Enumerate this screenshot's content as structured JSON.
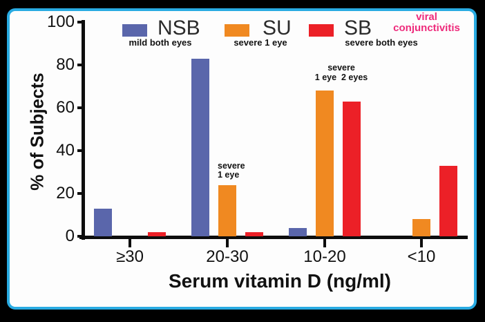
{
  "frame": {
    "outer_background": "#000000",
    "border_color": "#29ABE2",
    "panel_background": "#FDFDFD"
  },
  "chart_data": {
    "type": "bar",
    "title": "",
    "xlabel": "Serum vitamin D (ng/ml)",
    "ylabel": "% of Subjects",
    "categories": [
      "≥30",
      "20-30",
      "10-20",
      "<10"
    ],
    "ylim": [
      0,
      100
    ],
    "yticks": [
      0,
      20,
      40,
      60,
      80,
      100
    ],
    "grid": false,
    "legend_position": "top",
    "series": [
      {
        "name": "NSB",
        "sublabel": "mild both eyes",
        "color": "#5A66AB",
        "values": [
          13,
          83,
          4,
          0
        ]
      },
      {
        "name": "SU",
        "sublabel": "severe 1 eye",
        "color": "#F08921",
        "values": [
          0,
          24,
          68,
          8
        ]
      },
      {
        "name": "SB",
        "sublabel": "severe both eyes",
        "color": "#EC2027",
        "values": [
          2,
          2,
          63,
          33
        ]
      }
    ],
    "annotations": [
      {
        "lines": [
          "severe",
          "1 eye"
        ],
        "anchor_group": 1,
        "anchor_series": 1,
        "align": "left"
      },
      {
        "lines": [
          "severe",
          "1 eye  2 eyes"
        ],
        "anchor_group": 2,
        "anchor_series": 1,
        "align": "center"
      }
    ],
    "corner_note": {
      "lines": [
        "viral",
        "conjunctivitis"
      ],
      "color": "#EE2A7B"
    }
  }
}
